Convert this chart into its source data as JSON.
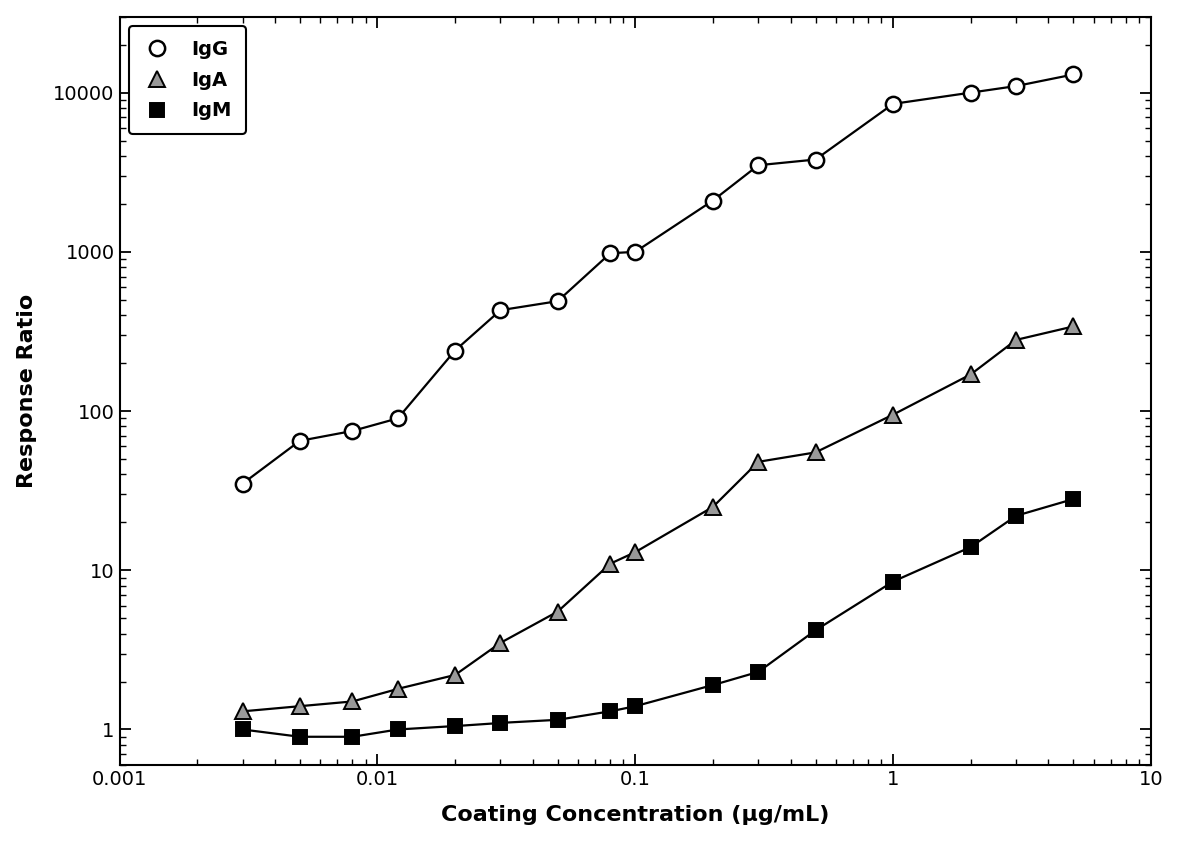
{
  "IgG_x": [
    0.003,
    0.005,
    0.008,
    0.012,
    0.02,
    0.03,
    0.05,
    0.08,
    0.1,
    0.2,
    0.3,
    0.5,
    1.0,
    2.0,
    3.0,
    5.0
  ],
  "IgG_y": [
    35,
    65,
    75,
    90,
    240,
    430,
    490,
    980,
    1000,
    2100,
    3500,
    3800,
    8500,
    10000,
    11000,
    13000
  ],
  "IgA_x": [
    0.003,
    0.005,
    0.008,
    0.012,
    0.02,
    0.03,
    0.05,
    0.08,
    0.1,
    0.2,
    0.3,
    0.5,
    1.0,
    2.0,
    3.0,
    5.0
  ],
  "IgA_y": [
    1.3,
    1.4,
    1.5,
    1.8,
    2.2,
    3.5,
    5.5,
    11,
    13,
    25,
    48,
    55,
    95,
    170,
    280,
    340
  ],
  "IgM_x": [
    0.003,
    0.005,
    0.008,
    0.012,
    0.02,
    0.03,
    0.05,
    0.08,
    0.1,
    0.2,
    0.3,
    0.5,
    1.0,
    2.0,
    3.0,
    5.0
  ],
  "IgM_y": [
    1.0,
    0.9,
    0.9,
    1.0,
    1.05,
    1.1,
    1.15,
    1.3,
    1.4,
    1.9,
    2.3,
    4.2,
    8.5,
    14,
    22,
    28
  ],
  "xlabel": "Coating Concentration (μg/mL)",
  "ylabel": "Response Ratio",
  "IgG_label": "IgG",
  "IgA_label": "IgA",
  "IgM_label": "IgM",
  "background_color": "#ffffff",
  "xlim": [
    0.001,
    10
  ],
  "ylim": [
    0.6,
    30000
  ],
  "label_fontsize": 16,
  "tick_fontsize": 14,
  "legend_fontsize": 14
}
